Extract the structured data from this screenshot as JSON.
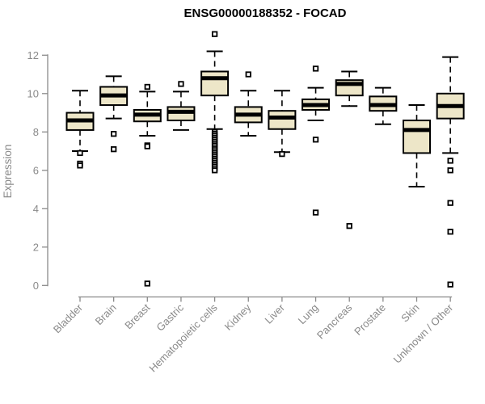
{
  "window": {
    "background": "#ffffff"
  },
  "chart_data": {
    "type": "boxplot",
    "title": "ENSG00000188352 - FOCAD",
    "xlabel": "",
    "ylabel": "Expression",
    "ylim": [
      0,
      12
    ],
    "yticks": [
      0,
      2,
      4,
      6,
      8,
      10,
      12
    ],
    "grid": false,
    "legend_position": "none",
    "whisker_style": "dashed",
    "outlier_marker": "open-square",
    "colors": {
      "box_fill": "#ede6c8",
      "box_border": "#000000",
      "median": "#000000",
      "whisker": "#000000",
      "outlier": "#000000",
      "axis": "#8a8a8a",
      "title": "#000000"
    },
    "categories": [
      "Bladder",
      "Brain",
      "Breast",
      "Gastric",
      "Hematopoietic cells",
      "Kidney",
      "Liver",
      "Lung",
      "Pancreas",
      "Prostate",
      "Skin",
      "Unknown / Other"
    ],
    "boxes": [
      {
        "category": "Bladder",
        "low": 7.0,
        "q1": 8.1,
        "median": 8.6,
        "q3": 9.0,
        "high": 10.15,
        "outliers": [
          6.9,
          6.35,
          6.25
        ]
      },
      {
        "category": "Brain",
        "low": 8.7,
        "q1": 9.4,
        "median": 9.9,
        "q3": 10.35,
        "high": 10.9,
        "outliers": [
          7.9,
          7.1
        ]
      },
      {
        "category": "Breast",
        "low": 7.8,
        "q1": 8.55,
        "median": 8.9,
        "q3": 9.15,
        "high": 10.1,
        "outliers": [
          10.35,
          7.3,
          7.25,
          0.1
        ]
      },
      {
        "category": "Gastric",
        "low": 8.1,
        "q1": 8.6,
        "median": 9.05,
        "q3": 9.3,
        "high": 10.1,
        "outliers": [
          10.5
        ]
      },
      {
        "category": "Hematopoietic cells",
        "low": 8.15,
        "q1": 9.9,
        "median": 10.8,
        "q3": 11.15,
        "high": 12.2,
        "outliers": [
          13.1,
          8.0,
          7.9,
          7.8,
          7.7,
          7.6,
          7.5,
          7.4,
          7.3,
          7.2,
          7.1,
          7.0,
          6.9,
          6.8,
          6.7,
          6.6,
          6.5,
          6.4,
          6.3,
          6.2,
          6.1,
          6.0
        ]
      },
      {
        "category": "Kidney",
        "low": 7.8,
        "q1": 8.5,
        "median": 8.9,
        "q3": 9.3,
        "high": 10.15,
        "outliers": [
          11.0
        ]
      },
      {
        "category": "Liver",
        "low": 6.95,
        "q1": 8.15,
        "median": 8.75,
        "q3": 9.1,
        "high": 10.15,
        "outliers": [
          6.85
        ]
      },
      {
        "category": "Lung",
        "low": 8.6,
        "q1": 9.15,
        "median": 9.4,
        "q3": 9.7,
        "high": 10.3,
        "outliers": [
          11.3,
          7.6,
          3.8
        ]
      },
      {
        "category": "Pancreas",
        "low": 9.35,
        "q1": 9.9,
        "median": 10.5,
        "q3": 10.7,
        "high": 11.15,
        "outliers": [
          3.1
        ]
      },
      {
        "category": "Prostate",
        "low": 8.4,
        "q1": 9.1,
        "median": 9.4,
        "q3": 9.85,
        "high": 10.3,
        "outliers": []
      },
      {
        "category": "Skin",
        "low": 5.15,
        "q1": 6.9,
        "median": 8.1,
        "q3": 8.6,
        "high": 9.4,
        "outliers": []
      },
      {
        "category": "Unknown / Other",
        "low": 6.9,
        "q1": 8.7,
        "median": 9.35,
        "q3": 10.0,
        "high": 11.9,
        "outliers": [
          6.5,
          6.0,
          4.3,
          2.8,
          0.05
        ]
      }
    ]
  }
}
